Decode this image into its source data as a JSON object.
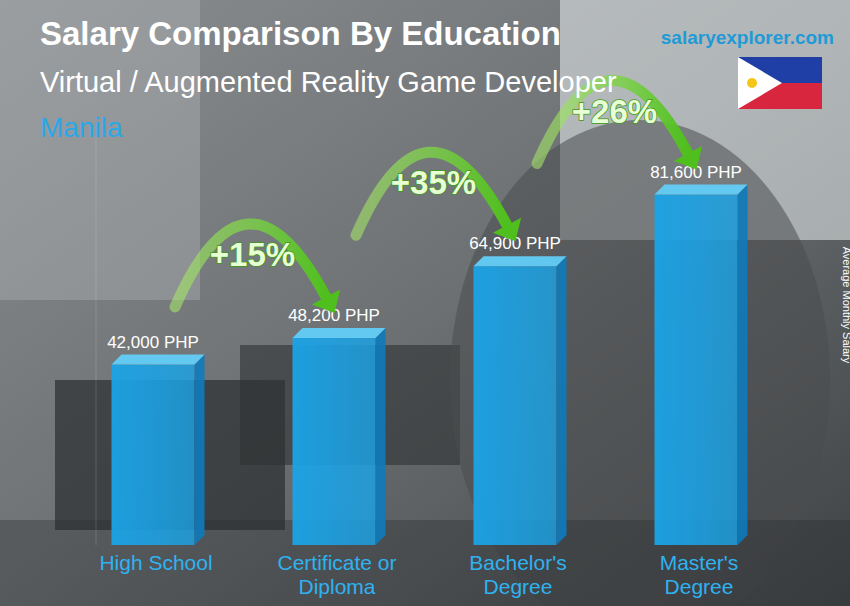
{
  "chart_data": {
    "type": "bar",
    "title": "Salary Comparison By Education",
    "subtitle": "Virtual / Augmented Reality Game Developer",
    "location": "Manila",
    "source": "salaryexplorer.com",
    "y_label": "Average Monthly Salary",
    "categories": [
      "High School",
      "Certificate or Diploma",
      "Bachelor's Degree",
      "Master's Degree"
    ],
    "values": [
      42000,
      48200,
      64900,
      81600
    ],
    "value_labels": [
      "42,000 PHP",
      "48,200 PHP",
      "64,900 PHP",
      "81,600 PHP"
    ],
    "annotations": [
      "+15%",
      "+35%",
      "+26%"
    ],
    "color": "#1ba3e6",
    "ylim": [
      0,
      95000
    ],
    "data_labels": true,
    "tick_labels": false,
    "grid": false
  }
}
